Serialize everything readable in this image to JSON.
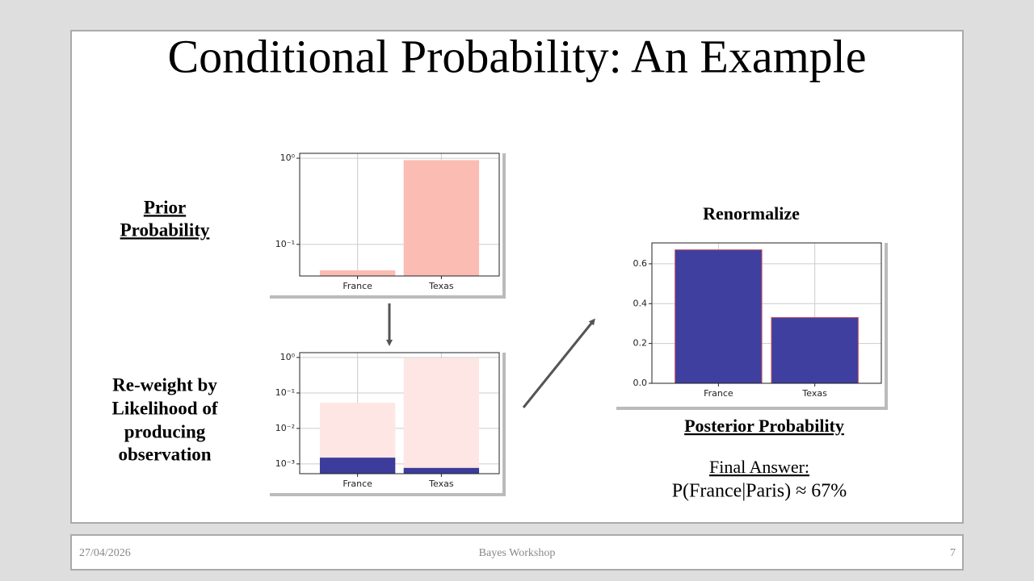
{
  "header": {
    "title": "Conditional Probability: An Example"
  },
  "labels": {
    "prior": [
      "Prior",
      "Probability"
    ],
    "reweight": [
      "Re-weight by",
      "Likelihood of",
      "producing",
      "observation"
    ],
    "renormalize": "Renormalize",
    "posterior": "Posterior Probability",
    "final_answer": "Final Answer:",
    "final_formula": "P(France|Paris) ≈ 67%"
  },
  "footer": {
    "date": "27/04/2026",
    "center": "Bayes Workshop",
    "page": "7"
  },
  "chart_data": [
    {
      "type": "bar",
      "log_scale": true,
      "grid": true,
      "color": "#fbbcb4",
      "categories": [
        "France",
        "Texas"
      ],
      "values": [
        0.05,
        0.95
      ],
      "ylim": [
        0.043,
        1.14
      ],
      "yticks": [
        {
          "value": 0.1,
          "label": "10⁻¹"
        },
        {
          "value": 1,
          "label": "10⁰"
        }
      ]
    },
    {
      "type": "bar",
      "log_scale": true,
      "grid": true,
      "categories": [
        "France",
        "Texas"
      ],
      "series": [
        {
          "color": "#fde6e3",
          "values": [
            0.053,
            0.95
          ]
        },
        {
          "color": "#3c3c9c",
          "values": [
            0.0015,
            0.00077
          ]
        }
      ],
      "ylim": [
        0.00053,
        1.37
      ],
      "yticks": [
        {
          "value": 0.001,
          "label": "10⁻³"
        },
        {
          "value": 0.01,
          "label": "10⁻²"
        },
        {
          "value": 0.1,
          "label": "10⁻¹"
        },
        {
          "value": 1,
          "label": "10⁰"
        }
      ]
    },
    {
      "type": "bar",
      "log_scale": false,
      "grid": true,
      "color": "#3f3fa0",
      "edge_color": "#c04a5a",
      "categories": [
        "France",
        "Texas"
      ],
      "values": [
        0.67,
        0.33
      ],
      "ylim": [
        0,
        0.705
      ],
      "yticks": [
        {
          "value": 0,
          "label": "0.0"
        },
        0.2,
        0.4,
        0.6
      ]
    }
  ]
}
